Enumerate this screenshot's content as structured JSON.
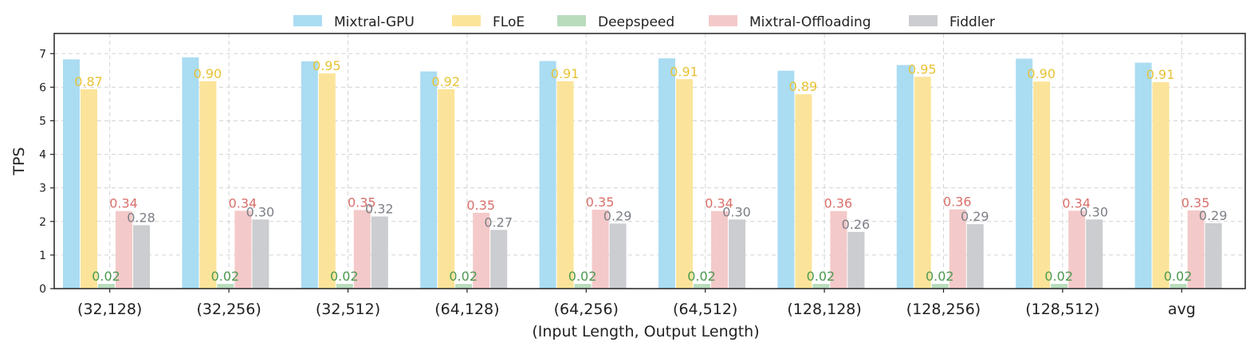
{
  "chart_data": {
    "type": "bar",
    "xlabel": "(Input Length, Output Length)",
    "ylabel": "TPS",
    "ylim": [
      0,
      7.6
    ],
    "yticks": [
      0,
      1,
      2,
      3,
      4,
      5,
      6,
      7
    ],
    "grid": true,
    "legend_position": "top-center",
    "categories": [
      "(32,128)",
      "(32,256)",
      "(32,512)",
      "(64,128)",
      "(64,256)",
      "(64,512)",
      "(128,128)",
      "(128,256)",
      "(128,512)",
      "avg"
    ],
    "series": [
      {
        "name": "Mixtral-GPU",
        "color": "#aadcf2",
        "label_color": "",
        "values": [
          6.83,
          6.89,
          6.77,
          6.47,
          6.78,
          6.86,
          6.49,
          6.66,
          6.85,
          6.73
        ],
        "labels": []
      },
      {
        "name": "FLoE",
        "color": "#fbe49a",
        "label_color": "#e8c235",
        "values": [
          5.94,
          6.18,
          6.41,
          5.94,
          6.18,
          6.24,
          5.79,
          6.31,
          6.17,
          6.15
        ],
        "labels": [
          "0.87",
          "0.90",
          "0.95",
          "0.92",
          "0.91",
          "0.91",
          "0.89",
          "0.95",
          "0.90",
          "0.91"
        ]
      },
      {
        "name": "Deepspeed",
        "color": "#b9dcbd",
        "label_color": "#4d9a51",
        "values": [
          0.14,
          0.14,
          0.14,
          0.14,
          0.14,
          0.14,
          0.14,
          0.14,
          0.14,
          0.14
        ],
        "labels": [
          "0.02",
          "0.02",
          "0.02",
          "0.02",
          "0.02",
          "0.02",
          "0.02",
          "0.02",
          "0.02",
          "0.02"
        ]
      },
      {
        "name": "Mixtral-Offloading",
        "color": "#f4c9c9",
        "label_color": "#d9706b",
        "values": [
          2.31,
          2.32,
          2.34,
          2.26,
          2.35,
          2.31,
          2.31,
          2.36,
          2.32,
          2.33
        ],
        "labels": [
          "0.34",
          "0.34",
          "0.35",
          "0.35",
          "0.35",
          "0.34",
          "0.36",
          "0.36",
          "0.34",
          "0.35"
        ]
      },
      {
        "name": "Fiddler",
        "color": "#cbcdd0",
        "label_color": "#7b7f86",
        "values": [
          1.89,
          2.06,
          2.15,
          1.75,
          1.94,
          2.06,
          1.69,
          1.92,
          2.06,
          1.95
        ],
        "labels": [
          "0.28",
          "0.30",
          "0.32",
          "0.27",
          "0.29",
          "0.30",
          "0.26",
          "0.29",
          "0.30",
          "0.29"
        ]
      }
    ]
  }
}
